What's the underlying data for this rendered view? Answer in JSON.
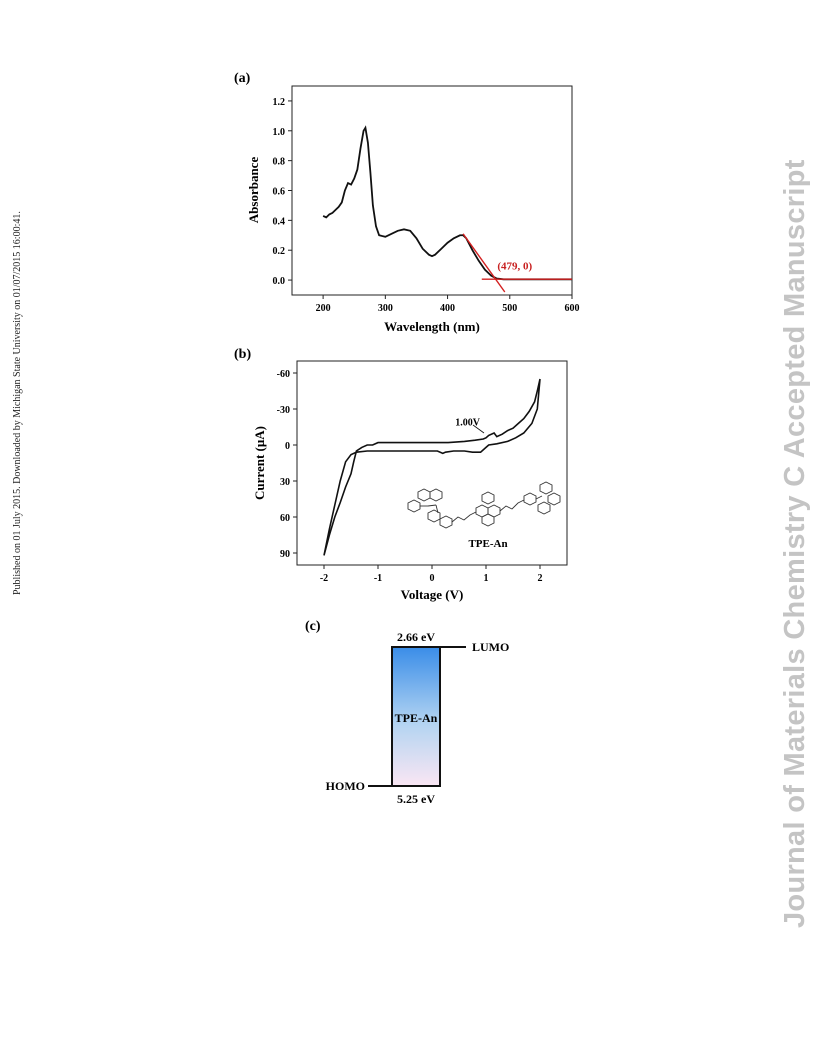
{
  "side_left_text": "Published on 01 July 2015. Downloaded by Michigan State University on 01/07/2015 16:00:41.",
  "side_right_text": "Journal of Materials Chemistry C Accepted Manuscript",
  "chart_data": [
    {
      "panel": "(a)",
      "type": "line",
      "xlabel": "Wavelength (nm)",
      "ylabel": "Absorbance",
      "xlim": [
        150,
        600
      ],
      "ylim": [
        -0.1,
        1.3
      ],
      "xticks": [
        200,
        300,
        400,
        500,
        600
      ],
      "yticks": [
        0.0,
        0.2,
        0.4,
        0.6,
        0.8,
        1.0,
        1.2
      ],
      "series": [
        {
          "color": "#111111",
          "x": [
            200,
            205,
            210,
            215,
            220,
            225,
            230,
            235,
            240,
            245,
            250,
            255,
            260,
            265,
            268,
            272,
            276,
            280,
            285,
            290,
            300,
            310,
            320,
            330,
            340,
            350,
            360,
            370,
            375,
            380,
            390,
            400,
            410,
            420,
            425,
            430,
            440,
            450,
            460,
            470,
            479,
            490,
            500,
            550,
            600
          ],
          "y": [
            0.43,
            0.42,
            0.44,
            0.45,
            0.47,
            0.49,
            0.52,
            0.6,
            0.65,
            0.64,
            0.68,
            0.74,
            0.88,
            1.0,
            1.02,
            0.92,
            0.72,
            0.5,
            0.36,
            0.3,
            0.29,
            0.31,
            0.33,
            0.34,
            0.33,
            0.28,
            0.21,
            0.17,
            0.16,
            0.17,
            0.21,
            0.25,
            0.28,
            0.3,
            0.3,
            0.28,
            0.2,
            0.13,
            0.07,
            0.03,
            0.01,
            0.005,
            0.005,
            0.005,
            0.005
          ]
        },
        {
          "name": "tangent",
          "color": "#d32020",
          "x": [
            425,
            492
          ],
          "y": [
            0.31,
            -0.08
          ]
        },
        {
          "name": "baseline",
          "color": "#d32020",
          "x": [
            455,
            600
          ],
          "y": [
            0.006,
            0.006
          ]
        }
      ],
      "annotations": [
        {
          "text": "(479, 0)",
          "color": "#c82020",
          "x": 480,
          "y": 0.07
        }
      ]
    },
    {
      "panel": "(b)",
      "type": "line",
      "xlabel": "Voltage (V)",
      "ylabel": "Current (μA)",
      "xlim": [
        -2.5,
        2.5
      ],
      "ylim": [
        100,
        -70
      ],
      "xticks": [
        -2,
        -1,
        0,
        1,
        2
      ],
      "yticks": [
        -60,
        -30,
        0,
        30,
        60,
        90
      ],
      "series": [
        {
          "color": "#111111",
          "x": [
            0,
            0.3,
            0.6,
            0.8,
            0.95,
            1.0,
            1.05,
            1.15,
            1.2,
            1.3,
            1.4,
            1.5,
            1.6,
            1.7,
            1.8,
            1.9,
            1.95,
            2.0,
            1.95,
            1.85,
            1.7,
            1.55,
            1.4,
            1.2,
            1.05,
            1.0,
            0.9,
            0.75,
            0.6,
            0.4,
            0.25,
            0.2,
            0.1,
            -0.2,
            -0.5,
            -0.8,
            -1.0,
            -1.2,
            -1.4,
            -1.5,
            -1.6,
            -1.7,
            -1.8,
            -1.9,
            -2.0,
            -1.9,
            -1.8,
            -1.7,
            -1.6,
            -1.5,
            -1.45,
            -1.4,
            -1.3,
            -1.2,
            -1.1,
            -1.0,
            -0.9,
            -0.5,
            0.0
          ],
          "y": [
            -2,
            -2,
            -3,
            -4,
            -5,
            -6,
            -8,
            -10,
            -7,
            -9,
            -12,
            -14,
            -18,
            -22,
            -28,
            -36,
            -45,
            -55,
            -30,
            -18,
            -10,
            -6,
            -3,
            -1,
            0,
            2,
            6,
            6,
            5,
            5,
            6,
            7,
            5,
            5,
            5,
            5,
            5,
            5,
            6,
            8,
            14,
            30,
            50,
            70,
            92,
            75,
            60,
            48,
            35,
            24,
            14,
            5,
            2,
            0,
            0,
            -2,
            -2,
            -2,
            -2
          ]
        }
      ],
      "annotations": [
        {
          "text": "1.00V",
          "x": 0.95,
          "y": -18
        }
      ],
      "molecule_label": "TPE-An"
    },
    {
      "panel": "(c)",
      "type": "energy-level",
      "box_label": "TPE-An",
      "lumo_label": "LUMO",
      "homo_label": "HOMO",
      "lumo_value": "2.66 eV",
      "homo_value": "5.25 eV",
      "colors": {
        "top": "#3a8de8",
        "middle": "#b3d4f2",
        "bottom": "#fae6f3"
      }
    }
  ]
}
